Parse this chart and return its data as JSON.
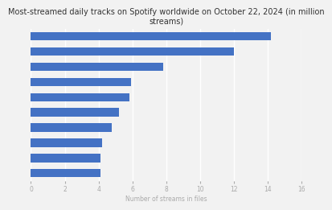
{
  "title": "Most-streamed daily tracks on Spotify worldwide on October 22, 2024 (in million\nstreams)",
  "xlabel": "Number of streams in files",
  "values": [
    14.2,
    12.0,
    7.8,
    5.9,
    5.8,
    5.2,
    4.8,
    4.2,
    4.1,
    4.1
  ],
  "bar_color": "#4472C4",
  "background_color": "#f2f2f2",
  "plot_bg_color": "#f2f2f2",
  "xlim": [
    0,
    16
  ],
  "xticks": [
    0,
    2,
    4,
    6,
    8,
    10,
    12,
    14,
    16
  ],
  "title_fontsize": 7.0,
  "xlabel_fontsize": 5.5,
  "tick_fontsize": 5.5,
  "bar_height": 0.55
}
